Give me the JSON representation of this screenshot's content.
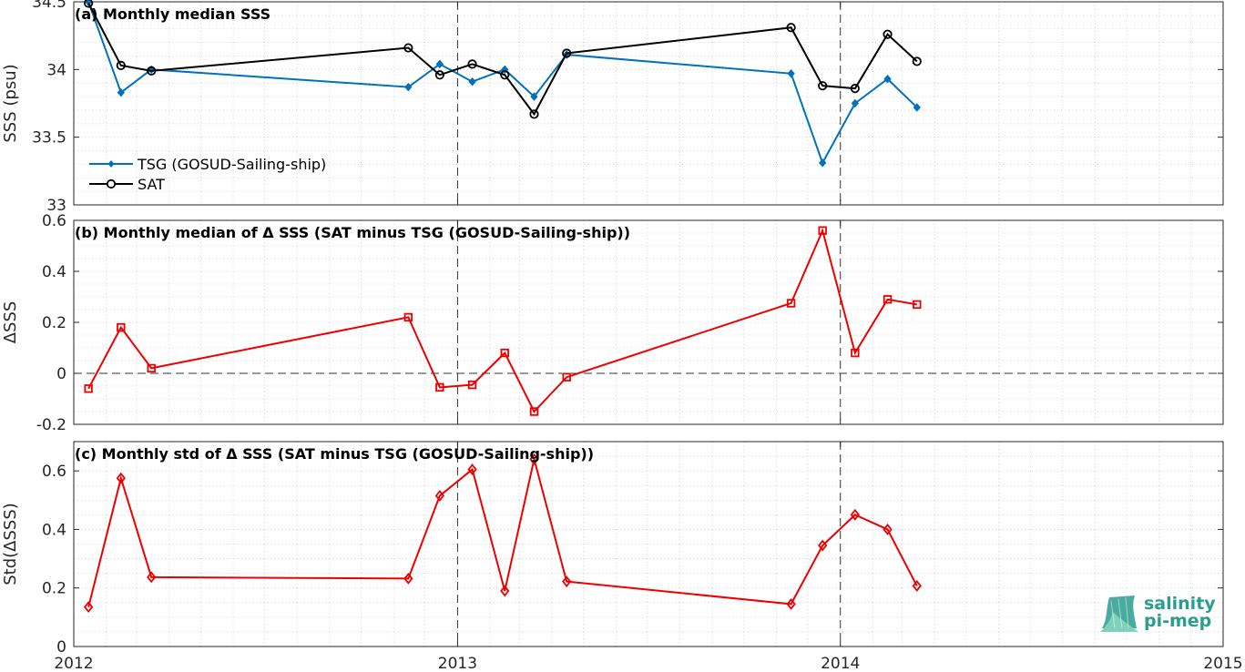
{
  "colors": {
    "tsg": "#0072BD",
    "sat": "#000000",
    "delta": "#EE0000",
    "logo": "#2a9d8f"
  },
  "logo": {
    "line1": "salinity",
    "line2": "pi-mep"
  },
  "chart_data": [
    {
      "type": "line",
      "title": "(a) Monthly median SSS",
      "ylabel": "SSS (psu)",
      "xlim": [
        "2012-01-01",
        "2015-01-01"
      ],
      "ylim": [
        33,
        34.5
      ],
      "yticks": [
        "33",
        "33.5",
        "34",
        "34.5"
      ],
      "xticks": [
        "2012",
        "2013",
        "2014",
        "2015"
      ],
      "grid": true,
      "legend_position": "lower-left",
      "series": [
        {
          "name": "TSG (GOSUD-Sailing-ship)",
          "marker": "star",
          "x": [
            "2012-01-15",
            "2012-02-15",
            "2012-03-15",
            "2012-11-15",
            "2012-12-15",
            "2013-01-15",
            "2013-02-15",
            "2013-03-15",
            "2013-04-15",
            "2013-11-15",
            "2013-12-15",
            "2014-01-15",
            "2014-02-15",
            "2014-03-15"
          ],
          "y": [
            34.5,
            33.83,
            34.0,
            33.87,
            34.04,
            33.91,
            34.0,
            33.8,
            34.11,
            33.97,
            33.31,
            33.75,
            33.93,
            33.72
          ]
        },
        {
          "name": "SAT",
          "marker": "circle",
          "x": [
            "2012-01-15",
            "2012-02-15",
            "2012-03-15",
            "2012-11-15",
            "2012-12-15",
            "2013-01-15",
            "2013-02-15",
            "2013-03-15",
            "2013-04-15",
            "2013-11-15",
            "2013-12-15",
            "2014-01-15",
            "2014-02-15",
            "2014-03-15"
          ],
          "y": [
            34.49,
            34.03,
            33.99,
            34.16,
            33.96,
            34.04,
            33.96,
            33.67,
            34.12,
            34.31,
            33.88,
            33.86,
            34.26,
            34.06
          ]
        }
      ]
    },
    {
      "type": "line",
      "title": "(b) Monthly median of Δ SSS (SAT minus TSG (GOSUD-Sailing-ship))",
      "ylabel": "ΔSSS",
      "xlim": [
        "2012-01-01",
        "2015-01-01"
      ],
      "ylim": [
        -0.2,
        0.6
      ],
      "yticks": [
        "-0.2",
        "0",
        "0.2",
        "0.4",
        "0.6"
      ],
      "grid": true,
      "series": [
        {
          "marker": "square",
          "x": [
            "2012-01-15",
            "2012-02-15",
            "2012-03-15",
            "2012-11-15",
            "2012-12-15",
            "2013-01-15",
            "2013-02-15",
            "2013-03-15",
            "2013-04-15",
            "2013-11-15",
            "2013-12-15",
            "2014-01-15",
            "2014-02-15",
            "2014-03-15"
          ],
          "y": [
            -0.06,
            0.18,
            0.02,
            0.22,
            -0.055,
            -0.045,
            0.08,
            -0.15,
            -0.015,
            0.275,
            0.56,
            0.08,
            0.29,
            0.27
          ]
        }
      ]
    },
    {
      "type": "line",
      "title": "(c) Monthly std of Δ SSS (SAT minus TSG (GOSUD-Sailing-ship))",
      "ylabel": "Std(ΔSSS)",
      "xlim": [
        "2012-01-01",
        "2015-01-01"
      ],
      "ylim": [
        0,
        0.7
      ],
      "yticks": [
        "0",
        "0.2",
        "0.4",
        "0.6"
      ],
      "xticks": [
        "2012",
        "2013",
        "2014",
        "2015"
      ],
      "grid": true,
      "series": [
        {
          "marker": "diamond",
          "x": [
            "2012-01-15",
            "2012-02-15",
            "2012-03-15",
            "2012-11-15",
            "2012-12-15",
            "2013-01-15",
            "2013-02-15",
            "2013-03-15",
            "2013-04-15",
            "2013-11-15",
            "2013-12-15",
            "2014-01-15",
            "2014-02-15",
            "2014-03-15"
          ],
          "y": [
            0.135,
            0.575,
            0.237,
            0.232,
            0.515,
            0.605,
            0.19,
            0.64,
            0.222,
            0.145,
            0.345,
            0.45,
            0.4,
            0.207
          ]
        }
      ]
    }
  ]
}
